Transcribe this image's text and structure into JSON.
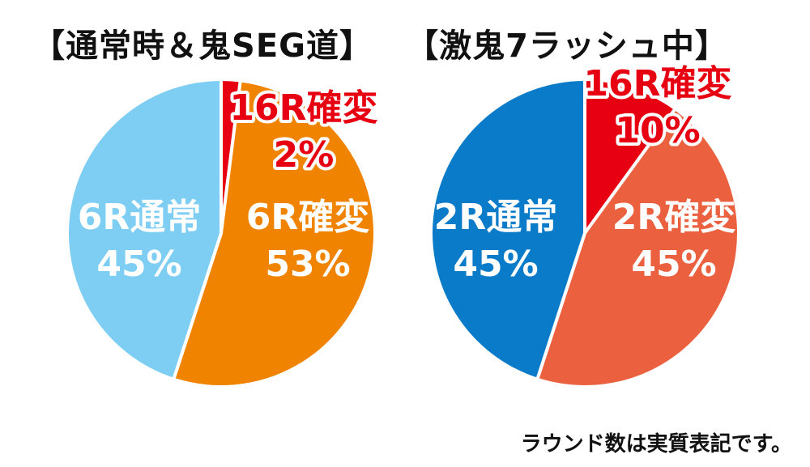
{
  "chart_data": [
    {
      "type": "pie",
      "title": "【通常時＆鬼SEG道】",
      "slices": [
        {
          "name": "16R確変",
          "value": 2,
          "label": "2%",
          "color": "#e60012"
        },
        {
          "name": "6R確変",
          "value": 53,
          "label": "53%",
          "color": "#f08300"
        },
        {
          "name": "6R通常",
          "value": 45,
          "label": "45%",
          "color": "#7ecef4"
        }
      ]
    },
    {
      "type": "pie",
      "title": "【激鬼7ラッシュ中】",
      "slices": [
        {
          "name": "16R確変",
          "value": 10,
          "label": "10%",
          "color": "#e60012"
        },
        {
          "name": "2R確変",
          "value": 45,
          "label": "45%",
          "color": "#eb6140"
        },
        {
          "name": "2R通常",
          "value": 45,
          "label": "45%",
          "color": "#0a7bc8"
        }
      ]
    }
  ],
  "footnote": "ラウンド数は実質表記です。"
}
